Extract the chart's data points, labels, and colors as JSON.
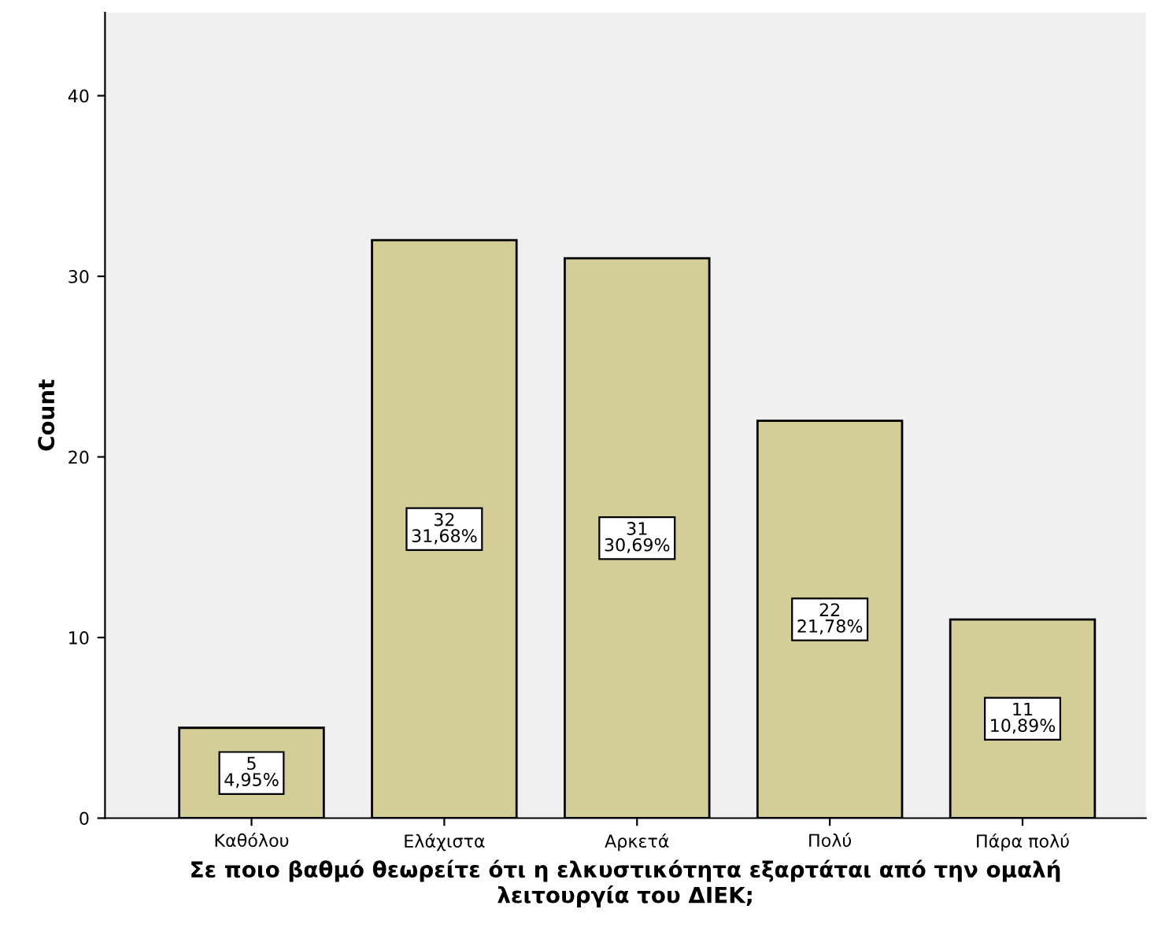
{
  "chart_data": {
    "type": "bar",
    "xlabel": "Σε ποιο βαθμό θεωρείτε ότι η ελκυστικότητα εξαρτάται από την ομαλή\nλειτουργία του ΔΙΕΚ;",
    "ylabel": "Count",
    "categories": [
      "Καθόλου",
      "Ελάχιστα",
      "Αρκετά",
      "Πολύ",
      "Πάρα πολύ"
    ],
    "values": [
      5,
      32,
      31,
      22,
      11
    ],
    "color": "#d3ce98",
    "value_labels": [
      "5\n4,95%",
      "32\n31,68%",
      "31\n30,69%",
      "22\n21,78%",
      "11\n10,89%"
    ],
    "ylim": [
      0,
      44.6
    ],
    "yticks": [
      0,
      10,
      20,
      30,
      40
    ],
    "grid": false,
    "legend": false
  }
}
